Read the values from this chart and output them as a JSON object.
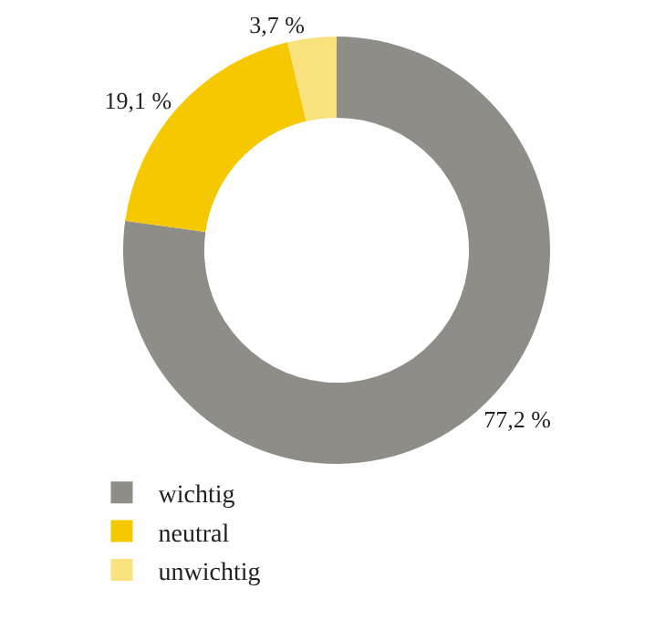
{
  "chart_data": {
    "type": "donut",
    "categories": [
      "wichtig",
      "neutral",
      "unwichtig"
    ],
    "values": [
      77.2,
      19.1,
      3.7
    ],
    "colors": [
      "#8f8d87",
      "#f5c800",
      "#fae27f"
    ],
    "value_labels": [
      "77,2 %",
      "19,1 %",
      "3,7 %"
    ],
    "legend": "bottom left"
  }
}
